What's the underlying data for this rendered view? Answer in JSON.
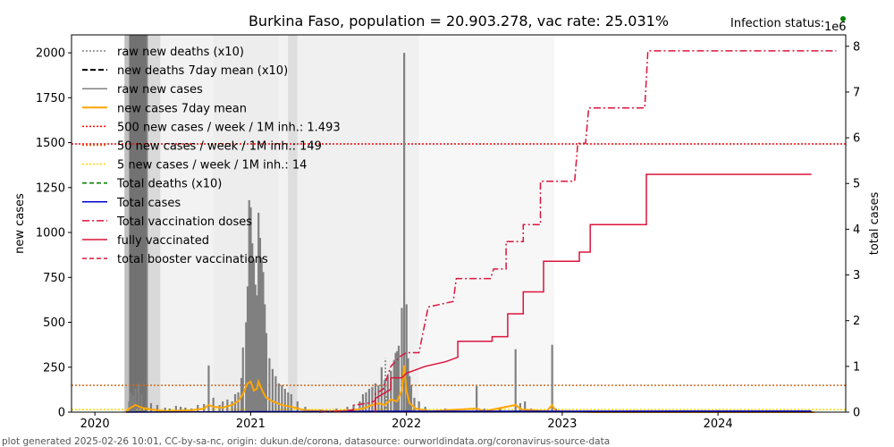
{
  "chart_data": {
    "type": "line",
    "title": "Burkina Faso, population = 20.903.278, vac rate: 25.031%",
    "status_label": "Infection status:",
    "status_color": "#008000",
    "footer": "plot generated 2025-02-26 10:01, CC-by-sa-nc, origin: dukun.de/corona, datasource: ourworldindata.org/coronavirus-source-data",
    "xlim": [
      2019.85,
      2024.82
    ],
    "x_ticks": [
      2020,
      2021,
      2022,
      2023,
      2024
    ],
    "x_tick_labels": [
      "2020",
      "2021",
      "2022",
      "2023",
      "2024"
    ],
    "ylabel_left": "new cases",
    "ylim_left": [
      0,
      2100
    ],
    "y_ticks_left": [
      0,
      250,
      500,
      750,
      1000,
      1250,
      1500,
      1750,
      2000
    ],
    "y_tick_labels_left": [
      "0",
      "250",
      "500",
      "750",
      "1000",
      "1250",
      "1500",
      "1750",
      "2000"
    ],
    "ylabel_right": "total cases",
    "right_scale_label": "1e6",
    "ylim_right": [
      0,
      8.25
    ],
    "y_ticks_right": [
      0,
      1,
      2,
      3,
      4,
      5,
      6,
      7,
      8
    ],
    "y_tick_labels_right": [
      "0",
      "1",
      "2",
      "3",
      "4",
      "5",
      "6",
      "7",
      "8"
    ],
    "legend": [
      {
        "label": "raw new deaths (x10)",
        "color": "#808080",
        "dash": "2,2",
        "width": 1.5
      },
      {
        "label": "new deaths 7day mean (x10)",
        "color": "#000000",
        "dash": "6,3",
        "width": 2
      },
      {
        "label": "raw new cases",
        "color": "#808080",
        "dash": "",
        "width": 1.5
      },
      {
        "label": "new cases 7day mean",
        "color": "#ffa500",
        "dash": "",
        "width": 2
      },
      {
        "label": "500 new cases / week / 1M inh.: 1.493",
        "color": "#ff0000",
        "dash": "2,2",
        "width": 1.5
      },
      {
        "label": "50 new cases / week / 1M inh.: 149",
        "color": "#d2691e",
        "dash": "2,2",
        "width": 1.5
      },
      {
        "label": "5 new cases / week / 1M inh.: 14",
        "color": "#ffd700",
        "dash": "2,2",
        "width": 1.5
      },
      {
        "label": "Total deaths (x10)",
        "color": "#008000",
        "dash": "5,3",
        "width": 1.5
      },
      {
        "label": "Total cases",
        "color": "#0000cd",
        "dash": "",
        "width": 1.5
      },
      {
        "label": "Total vaccination doses",
        "color": "#dc143c",
        "dash": "8,3,2,3",
        "width": 1.5
      },
      {
        "label": "fully vaccinated",
        "color": "#dc143c",
        "dash": "",
        "width": 1.5
      },
      {
        "label": "total booster vaccinations",
        "color": "#dc143c",
        "dash": "5,3",
        "width": 1.5
      }
    ],
    "thresholds": [
      {
        "value": 1493,
        "color": "#ff0000"
      },
      {
        "value": 149,
        "color": "#d2691e"
      },
      {
        "value": 14,
        "color": "#ffd700"
      }
    ],
    "raw_new_cases": [
      [
        2020.22,
        60
      ],
      [
        2020.23,
        110
      ],
      [
        2020.245,
        90
      ],
      [
        2020.26,
        130
      ],
      [
        2020.28,
        160
      ],
      [
        2020.3,
        100
      ],
      [
        2020.33,
        70
      ],
      [
        2020.36,
        50
      ],
      [
        2020.4,
        40
      ],
      [
        2020.45,
        25
      ],
      [
        2020.48,
        20
      ],
      [
        2020.52,
        35
      ],
      [
        2020.55,
        30
      ],
      [
        2020.58,
        25
      ],
      [
        2020.62,
        20
      ],
      [
        2020.66,
        40
      ],
      [
        2020.7,
        45
      ],
      [
        2020.73,
        260
      ],
      [
        2020.76,
        80
      ],
      [
        2020.8,
        40
      ],
      [
        2020.82,
        60
      ],
      [
        2020.85,
        70
      ],
      [
        2020.88,
        60
      ],
      [
        2020.9,
        100
      ],
      [
        2020.92,
        110
      ],
      [
        2020.94,
        190
      ],
      [
        2020.95,
        360
      ],
      [
        2020.97,
        500
      ],
      [
        2020.98,
        700
      ],
      [
        2020.99,
        1180
      ],
      [
        2021.0,
        1140
      ],
      [
        2021.01,
        940
      ],
      [
        2021.02,
        850
      ],
      [
        2021.03,
        710
      ],
      [
        2021.04,
        650
      ],
      [
        2021.05,
        1110
      ],
      [
        2021.06,
        970
      ],
      [
        2021.07,
        860
      ],
      [
        2021.08,
        780
      ],
      [
        2021.09,
        600
      ],
      [
        2021.1,
        440
      ],
      [
        2021.12,
        300
      ],
      [
        2021.14,
        240
      ],
      [
        2021.16,
        200
      ],
      [
        2021.18,
        160
      ],
      [
        2021.2,
        150
      ],
      [
        2021.22,
        130
      ],
      [
        2021.24,
        110
      ],
      [
        2021.26,
        100
      ],
      [
        2021.3,
        60
      ],
      [
        2021.35,
        30
      ],
      [
        2021.45,
        15
      ],
      [
        2021.55,
        20
      ],
      [
        2021.62,
        30
      ],
      [
        2021.66,
        40
      ],
      [
        2021.7,
        60
      ],
      [
        2021.72,
        100
      ],
      [
        2021.74,
        110
      ],
      [
        2021.76,
        130
      ],
      [
        2021.78,
        140
      ],
      [
        2021.8,
        160
      ],
      [
        2021.82,
        150
      ],
      [
        2021.84,
        250
      ],
      [
        2021.86,
        180
      ],
      [
        2021.88,
        200
      ],
      [
        2021.9,
        230
      ],
      [
        2021.92,
        290
      ],
      [
        2021.93,
        330
      ],
      [
        2021.94,
        340
      ],
      [
        2021.95,
        370
      ],
      [
        2021.97,
        580
      ],
      [
        2021.985,
        2000
      ],
      [
        2022.0,
        600
      ],
      [
        2022.01,
        300
      ],
      [
        2022.02,
        200
      ],
      [
        2022.03,
        150
      ],
      [
        2022.05,
        80
      ],
      [
        2022.08,
        60
      ],
      [
        2022.12,
        30
      ],
      [
        2022.25,
        20
      ],
      [
        2022.45,
        145
      ],
      [
        2022.5,
        20
      ],
      [
        2022.6,
        20
      ],
      [
        2022.7,
        350
      ],
      [
        2022.73,
        50
      ],
      [
        2022.76,
        60
      ],
      [
        2022.8,
        20
      ],
      [
        2022.9,
        10
      ],
      [
        2022.935,
        375
      ],
      [
        2022.96,
        20
      ],
      [
        2023.1,
        5
      ],
      [
        2023.4,
        5
      ],
      [
        2023.8,
        5
      ],
      [
        2024.0,
        10
      ],
      [
        2024.4,
        5
      ]
    ],
    "new_cases_7day_mean": [
      [
        2020.2,
        0
      ],
      [
        2020.22,
        20
      ],
      [
        2020.26,
        40
      ],
      [
        2020.3,
        25
      ],
      [
        2020.36,
        15
      ],
      [
        2020.45,
        5
      ],
      [
        2020.55,
        8
      ],
      [
        2020.62,
        10
      ],
      [
        2020.7,
        20
      ],
      [
        2020.73,
        40
      ],
      [
        2020.76,
        30
      ],
      [
        2020.82,
        25
      ],
      [
        2020.88,
        40
      ],
      [
        2020.92,
        60
      ],
      [
        2020.95,
        100
      ],
      [
        2020.98,
        160
      ],
      [
        2021.0,
        170
      ],
      [
        2021.02,
        120
      ],
      [
        2021.04,
        130
      ],
      [
        2021.05,
        170
      ],
      [
        2021.06,
        150
      ],
      [
        2021.08,
        110
      ],
      [
        2021.1,
        80
      ],
      [
        2021.14,
        60
      ],
      [
        2021.2,
        40
      ],
      [
        2021.26,
        30
      ],
      [
        2021.35,
        10
      ],
      [
        2021.5,
        5
      ],
      [
        2021.65,
        10
      ],
      [
        2021.72,
        20
      ],
      [
        2021.78,
        40
      ],
      [
        2021.82,
        50
      ],
      [
        2021.86,
        40
      ],
      [
        2021.9,
        70
      ],
      [
        2021.94,
        60
      ],
      [
        2021.97,
        120
      ],
      [
        2021.985,
        260
      ],
      [
        2022.0,
        120
      ],
      [
        2022.02,
        50
      ],
      [
        2022.06,
        20
      ],
      [
        2022.15,
        5
      ],
      [
        2022.45,
        20
      ],
      [
        2022.5,
        5
      ],
      [
        2022.7,
        40
      ],
      [
        2022.74,
        15
      ],
      [
        2022.9,
        5
      ],
      [
        2022.935,
        40
      ],
      [
        2022.96,
        5
      ],
      [
        2023.2,
        0
      ],
      [
        2024.62,
        0
      ]
    ],
    "raw_new_deaths_x10": [
      [
        2021.86,
        150
      ],
      [
        2021.865,
        300
      ],
      [
        2021.87,
        100
      ],
      [
        2021.92,
        120
      ],
      [
        2021.93,
        280
      ],
      [
        2021.95,
        220
      ],
      [
        2021.97,
        200
      ],
      [
        2021.985,
        330
      ],
      [
        2022.0,
        100
      ]
    ],
    "total_cases": [
      [
        2020.2,
        0
      ],
      [
        2021.0,
        0.01
      ],
      [
        2022.0,
        0.02
      ],
      [
        2024.6,
        0.022
      ]
    ],
    "total_vaccination_doses": [
      [
        2021.44,
        0.0
      ],
      [
        2021.6,
        0.03
      ],
      [
        2021.66,
        0.05
      ],
      [
        2021.66,
        0.15
      ],
      [
        2021.76,
        0.2
      ],
      [
        2021.8,
        0.25
      ],
      [
        2021.8,
        0.4
      ],
      [
        2021.85,
        0.5
      ],
      [
        2021.9,
        1.0
      ],
      [
        2021.96,
        1.22
      ],
      [
        2022.0,
        1.3
      ],
      [
        2022.08,
        1.3
      ],
      [
        2022.14,
        2.3
      ],
      [
        2022.3,
        2.42
      ],
      [
        2022.32,
        2.92
      ],
      [
        2022.54,
        2.92
      ],
      [
        2022.56,
        3.13
      ],
      [
        2022.64,
        3.13
      ],
      [
        2022.64,
        3.73
      ],
      [
        2022.75,
        3.73
      ],
      [
        2022.75,
        4.1
      ],
      [
        2022.86,
        4.1
      ],
      [
        2022.86,
        5.05
      ],
      [
        2023.08,
        5.05
      ],
      [
        2023.1,
        5.88
      ],
      [
        2023.15,
        5.88
      ],
      [
        2023.17,
        6.65
      ],
      [
        2023.53,
        6.65
      ],
      [
        2023.55,
        7.9
      ],
      [
        2024.76,
        7.9
      ]
    ],
    "fully_vaccinated": [
      [
        2021.8,
        0.0
      ],
      [
        2021.8,
        0.3
      ],
      [
        2021.9,
        0.5
      ],
      [
        2021.9,
        0.75
      ],
      [
        2021.97,
        0.75
      ],
      [
        2022.0,
        0.85
      ],
      [
        2022.12,
        1.0
      ],
      [
        2022.25,
        1.1
      ],
      [
        2022.33,
        1.2
      ],
      [
        2022.33,
        1.55
      ],
      [
        2022.55,
        1.55
      ],
      [
        2022.55,
        1.65
      ],
      [
        2022.65,
        1.65
      ],
      [
        2022.65,
        2.15
      ],
      [
        2022.75,
        2.15
      ],
      [
        2022.75,
        2.63
      ],
      [
        2022.88,
        2.63
      ],
      [
        2022.88,
        3.3
      ],
      [
        2023.11,
        3.3
      ],
      [
        2023.11,
        3.5
      ],
      [
        2023.18,
        3.5
      ],
      [
        2023.18,
        4.1
      ],
      [
        2023.54,
        4.1
      ],
      [
        2023.54,
        5.2
      ],
      [
        2024.6,
        5.2
      ]
    ],
    "background_bands": [
      {
        "x0": 2020.19,
        "x1": 2020.33,
        "shade": 0.25
      },
      {
        "x0": 2020.22,
        "x1": 2020.34,
        "shade": 0.4
      },
      {
        "x0": 2020.33,
        "x1": 2020.42,
        "shade": 0.15
      },
      {
        "x0": 2020.42,
        "x1": 2020.76,
        "shade": 0.05
      },
      {
        "x0": 2020.76,
        "x1": 2021.18,
        "shade": 0.07
      },
      {
        "x0": 2021.18,
        "x1": 2021.24,
        "shade": 0.05
      },
      {
        "x0": 2021.24,
        "x1": 2021.3,
        "shade": 0.13
      },
      {
        "x0": 2021.3,
        "x1": 2021.8,
        "shade": 0.06
      },
      {
        "x0": 2021.8,
        "x1": 2022.08,
        "shade": 0.06
      },
      {
        "x0": 2022.08,
        "x1": 2022.95,
        "shade": 0.03
      }
    ]
  }
}
